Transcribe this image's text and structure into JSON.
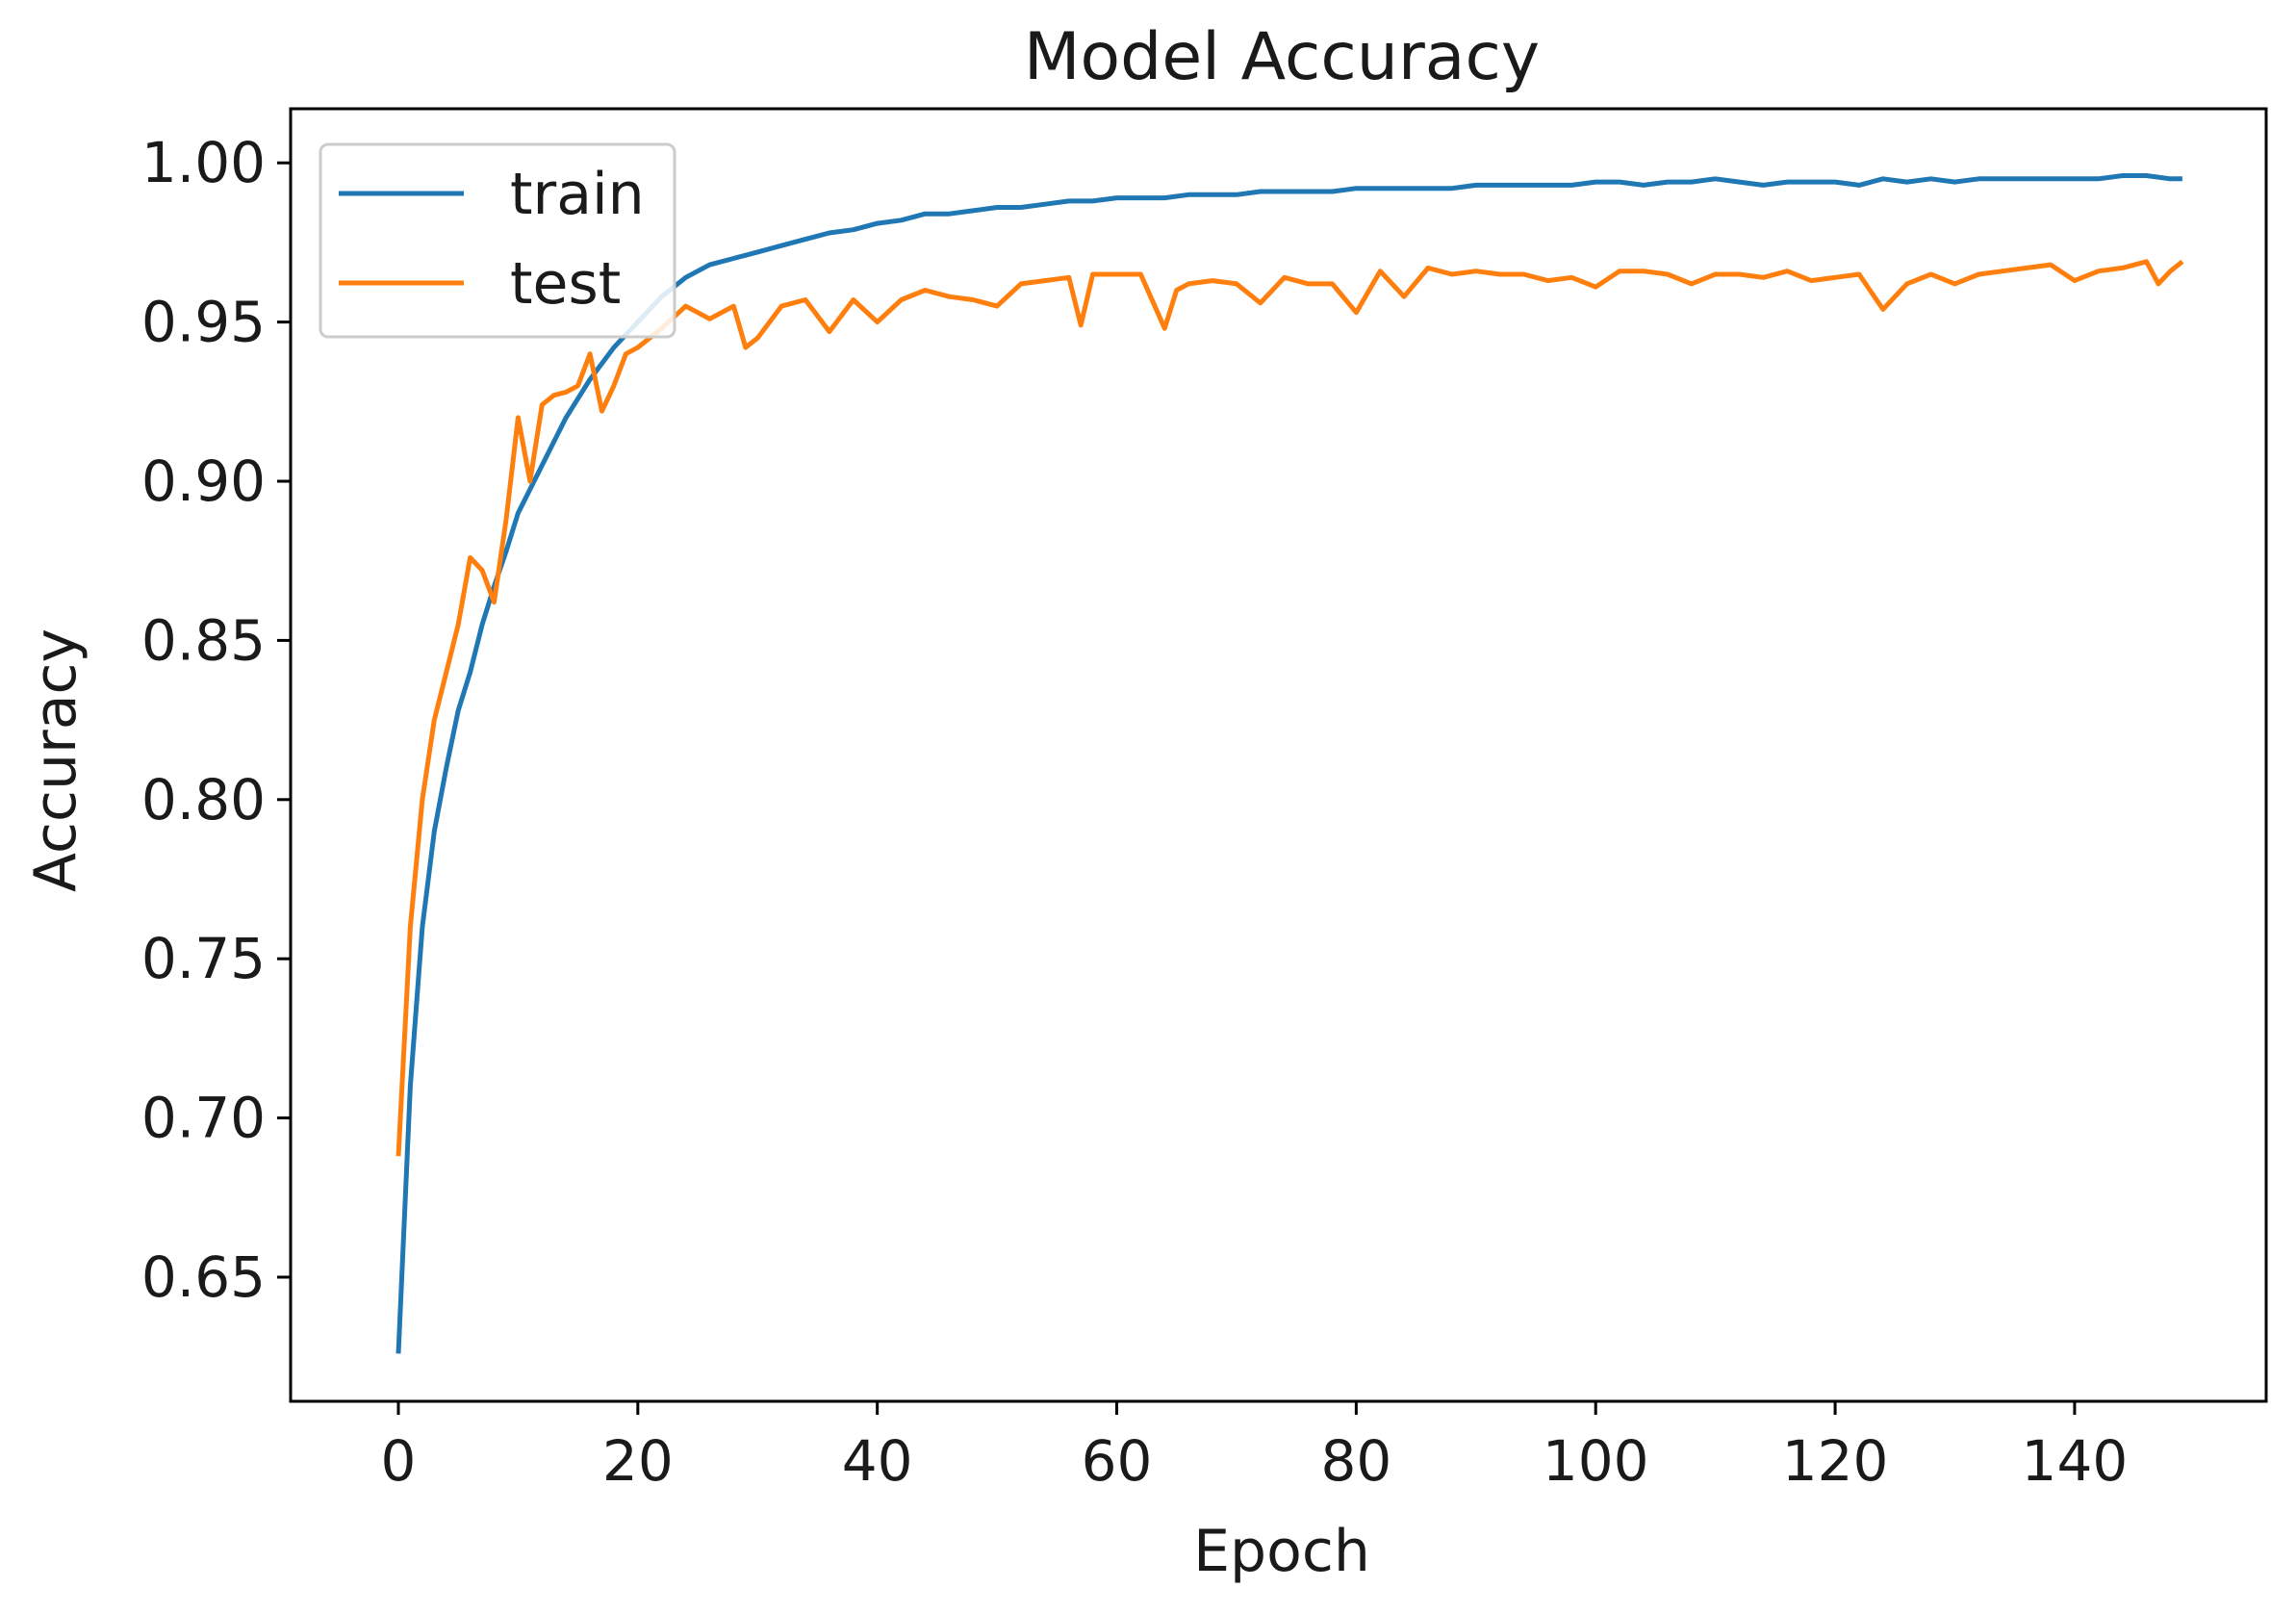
{
  "chart_data": {
    "type": "line",
    "title": "Model Accuracy",
    "xlabel": "Epoch",
    "ylabel": "Accuracy",
    "xlim": [
      -9,
      156
    ],
    "ylim": [
      0.611,
      1.017
    ],
    "xticks": [
      0,
      20,
      40,
      60,
      80,
      100,
      120,
      140
    ],
    "xtick_labels": [
      "0",
      "20",
      "40",
      "60",
      "80",
      "100",
      "120",
      "140"
    ],
    "yticks": [
      0.65,
      0.7,
      0.75,
      0.8,
      0.85,
      0.9,
      0.95,
      1.0
    ],
    "ytick_labels": [
      "0.65",
      "0.70",
      "0.75",
      "0.80",
      "0.85",
      "0.90",
      "0.95",
      "1.00"
    ],
    "grid": false,
    "legend_position": "upper-left",
    "series": [
      {
        "name": "train",
        "color": "#1f77b4",
        "x": [
          0,
          1,
          2,
          3,
          4,
          5,
          6,
          7,
          8,
          9,
          10,
          12,
          14,
          16,
          18,
          20,
          22,
          24,
          26,
          28,
          30,
          32,
          34,
          36,
          38,
          40,
          42,
          44,
          46,
          48,
          50,
          52,
          54,
          56,
          58,
          60,
          62,
          64,
          66,
          68,
          70,
          72,
          74,
          76,
          78,
          80,
          82,
          84,
          86,
          88,
          90,
          92,
          94,
          96,
          98,
          100,
          102,
          104,
          106,
          108,
          110,
          112,
          114,
          116,
          118,
          120,
          122,
          124,
          126,
          128,
          130,
          132,
          134,
          136,
          138,
          140,
          142,
          144,
          146,
          148,
          149
        ],
        "y": [
          0.626,
          0.71,
          0.76,
          0.79,
          0.81,
          0.828,
          0.84,
          0.855,
          0.867,
          0.878,
          0.89,
          0.905,
          0.92,
          0.932,
          0.942,
          0.95,
          0.958,
          0.964,
          0.968,
          0.97,
          0.972,
          0.974,
          0.976,
          0.978,
          0.979,
          0.981,
          0.982,
          0.984,
          0.984,
          0.985,
          0.986,
          0.986,
          0.987,
          0.988,
          0.988,
          0.989,
          0.989,
          0.989,
          0.99,
          0.99,
          0.99,
          0.991,
          0.991,
          0.991,
          0.991,
          0.992,
          0.992,
          0.992,
          0.992,
          0.992,
          0.993,
          0.993,
          0.993,
          0.993,
          0.993,
          0.994,
          0.994,
          0.993,
          0.994,
          0.994,
          0.995,
          0.994,
          0.993,
          0.994,
          0.994,
          0.994,
          0.993,
          0.995,
          0.994,
          0.995,
          0.994,
          0.995,
          0.995,
          0.995,
          0.995,
          0.995,
          0.995,
          0.996,
          0.996,
          0.995,
          0.995
        ]
      },
      {
        "name": "test",
        "color": "#ff7f0e",
        "x": [
          0,
          1,
          2,
          3,
          4,
          5,
          6,
          7,
          8,
          9,
          10,
          11,
          12,
          13,
          14,
          15,
          16,
          17,
          18,
          19,
          20,
          22,
          24,
          26,
          28,
          29,
          30,
          32,
          34,
          36,
          38,
          40,
          42,
          44,
          46,
          48,
          50,
          52,
          54,
          56,
          57,
          58,
          60,
          62,
          64,
          65,
          66,
          68,
          70,
          72,
          74,
          76,
          78,
          80,
          82,
          84,
          86,
          88,
          90,
          92,
          94,
          96,
          98,
          100,
          102,
          104,
          106,
          108,
          110,
          112,
          114,
          116,
          118,
          120,
          122,
          124,
          126,
          128,
          130,
          132,
          134,
          136,
          138,
          140,
          142,
          144,
          146,
          147,
          148,
          149
        ],
        "y": [
          0.688,
          0.76,
          0.8,
          0.825,
          0.84,
          0.855,
          0.876,
          0.872,
          0.862,
          0.888,
          0.92,
          0.9,
          0.924,
          0.927,
          0.928,
          0.93,
          0.94,
          0.922,
          0.93,
          0.94,
          0.942,
          0.948,
          0.955,
          0.951,
          0.955,
          0.942,
          0.945,
          0.955,
          0.957,
          0.947,
          0.957,
          0.95,
          0.957,
          0.96,
          0.958,
          0.957,
          0.955,
          0.962,
          0.963,
          0.964,
          0.949,
          0.965,
          0.965,
          0.965,
          0.948,
          0.96,
          0.962,
          0.963,
          0.962,
          0.956,
          0.964,
          0.962,
          0.962,
          0.953,
          0.966,
          0.958,
          0.967,
          0.965,
          0.966,
          0.965,
          0.965,
          0.963,
          0.964,
          0.961,
          0.966,
          0.966,
          0.965,
          0.962,
          0.965,
          0.965,
          0.964,
          0.966,
          0.963,
          0.964,
          0.965,
          0.954,
          0.962,
          0.965,
          0.962,
          0.965,
          0.966,
          0.967,
          0.968,
          0.963,
          0.966,
          0.967,
          0.969,
          0.962,
          0.966,
          0.969
        ]
      }
    ]
  }
}
